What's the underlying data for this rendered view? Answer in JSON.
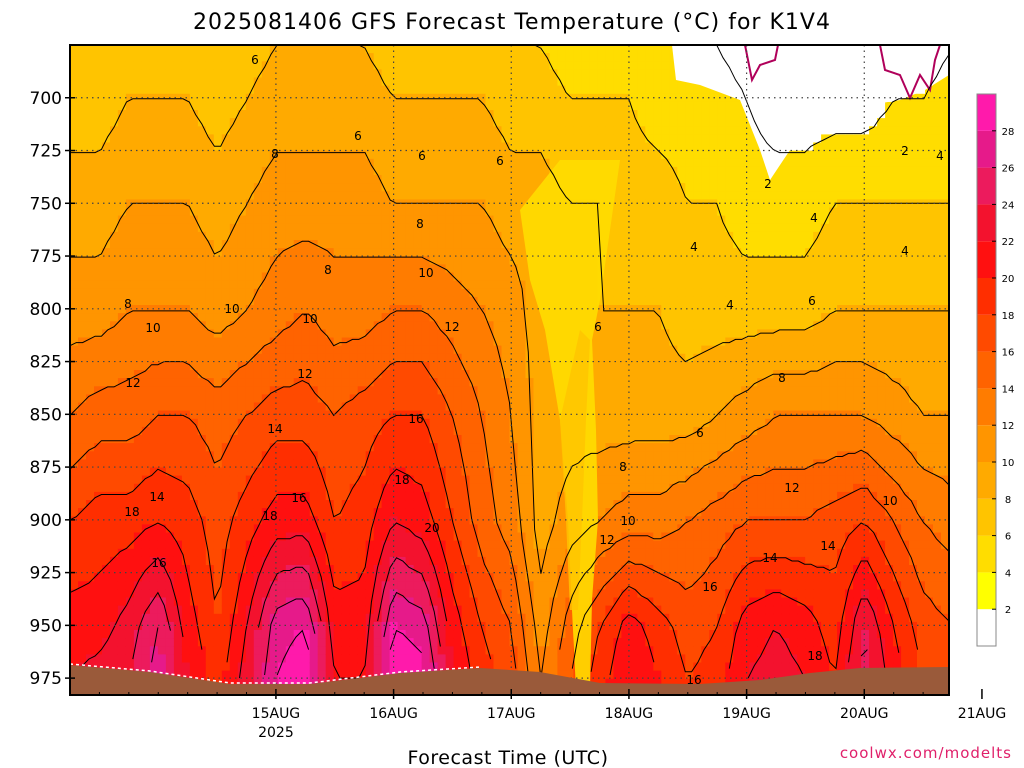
{
  "chart_data": {
    "type": "heatmap",
    "title": "2025081406 GFS Forecast Temperature (°C) for K1V4",
    "xlabel": "Forecast Time (UTC)",
    "ylabel": "",
    "credit": "coolwx.com/modelts",
    "x_ticks": [
      {
        "day": 1,
        "label": "15AUG",
        "sublabel": "2025"
      },
      {
        "day": 2,
        "label": "16AUG",
        "sublabel": ""
      },
      {
        "day": 3,
        "label": "17AUG",
        "sublabel": ""
      },
      {
        "day": 4,
        "label": "18AUG",
        "sublabel": ""
      },
      {
        "day": 5,
        "label": "19AUG",
        "sublabel": ""
      },
      {
        "day": 6,
        "label": "20AUG",
        "sublabel": ""
      },
      {
        "day": 7,
        "label": "21AUG",
        "sublabel": ""
      }
    ],
    "xlim_days": [
      -0.75,
      6.72
    ],
    "y_axis_units": "hPa",
    "y_ticks": [
      700,
      725,
      750,
      775,
      800,
      825,
      850,
      875,
      900,
      925,
      950,
      975
    ],
    "ylim": [
      675,
      983
    ],
    "y_inverted": true,
    "grid": "dotted",
    "colorbar": {
      "ticks": [
        2,
        4,
        6,
        8,
        10,
        12,
        14,
        16,
        18,
        20,
        22,
        24,
        26,
        28
      ],
      "colors": [
        "#ffffff",
        "#ffff00",
        "#ffdd00",
        "#ffc400",
        "#ffaa00",
        "#ff9500",
        "#ff7c00",
        "#ff6300",
        "#ff4a00",
        "#ff2e00",
        "#ff1010",
        "#f3122e",
        "#ec1b5d",
        "#e61a8a",
        "#ff1aab"
      ],
      "position": "right"
    },
    "series": [
      {
        "time_days": [
          -0.75,
          -0.5,
          -0.25,
          0.0,
          0.25,
          0.5,
          0.75,
          1.0,
          1.25,
          1.5,
          1.75,
          2.0,
          2.25,
          2.5,
          2.75,
          3.0,
          3.25,
          3.5,
          3.75,
          4.0,
          4.25,
          4.5,
          4.75,
          5.0,
          5.25,
          5.5,
          5.75,
          6.0,
          6.25,
          6.5,
          6.75
        ]
      },
      {
        "level_hPa": 700,
        "temps_C": [
          5,
          5,
          6,
          6,
          6,
          5,
          6,
          7,
          7,
          7,
          7,
          6,
          6,
          6,
          6,
          5,
          5,
          4,
          4,
          4,
          3,
          3,
          3,
          2,
          1,
          1,
          1,
          1,
          2,
          2,
          3
        ]
      },
      {
        "level_hPa": 750,
        "temps_C": [
          7,
          7,
          8,
          8,
          8,
          7,
          8,
          9,
          9,
          9,
          9,
          8,
          8,
          8,
          8,
          7,
          7,
          6,
          6,
          5,
          5,
          4,
          4,
          3,
          3,
          3,
          4,
          4,
          4,
          4,
          4
        ]
      },
      {
        "level_hPa": 800,
        "temps_C": [
          9,
          9,
          10,
          10,
          10,
          9,
          10,
          11,
          12,
          11,
          11,
          12,
          12,
          11,
          10,
          9,
          7,
          6,
          6,
          6,
          6,
          5,
          5,
          5,
          5,
          5,
          6,
          6,
          6,
          6,
          6
        ]
      },
      {
        "level_hPa": 850,
        "temps_C": [
          12,
          13,
          13,
          14,
          14,
          13,
          14,
          15,
          15,
          14,
          15,
          16,
          16,
          14,
          12,
          10,
          7,
          7,
          7,
          7,
          7,
          7,
          8,
          9,
          10,
          10,
          10,
          10,
          9,
          8,
          8
        ]
      },
      {
        "level_hPa": 900,
        "temps_C": [
          16,
          17,
          17,
          18,
          17,
          15,
          17,
          19,
          19,
          16,
          17,
          20,
          19,
          16,
          13,
          11,
          7,
          9,
          10,
          11,
          11,
          12,
          13,
          14,
          14,
          14,
          15,
          16,
          14,
          12,
          11
        ]
      },
      {
        "level_hPa": 950,
        "temps_C": [
          19,
          19,
          21,
          24,
          19,
          16,
          20,
          25,
          26,
          19,
          19,
          26,
          25,
          19,
          16,
          14,
          9,
          13,
          16,
          19,
          17,
          15,
          16,
          19,
          20,
          19,
          17,
          22,
          18,
          15,
          14
        ]
      },
      {
        "level_hPa": 975,
        "temps_C": [
          20,
          21,
          22,
          25,
          20,
          17,
          21,
          26,
          28,
          20,
          20,
          28,
          27,
          20,
          17,
          15,
          10,
          14,
          17,
          20,
          18,
          16,
          17,
          20,
          21,
          20,
          18,
          23,
          19,
          16,
          15
        ]
      }
    ],
    "contour_labels": [
      "2",
      "2",
      "4",
      "4",
      "4",
      "4",
      "4",
      "6",
      "6",
      "6",
      "6",
      "6",
      "6",
      "6",
      "8",
      "8",
      "8",
      "8",
      "8",
      "8",
      "10",
      "10",
      "10",
      "10",
      "10",
      "10",
      "12",
      "12",
      "12",
      "12",
      "12",
      "14",
      "14",
      "14",
      "14",
      "16",
      "16",
      "16",
      "16",
      "18",
      "18",
      "18",
      "18",
      "16",
      "20"
    ]
  }
}
